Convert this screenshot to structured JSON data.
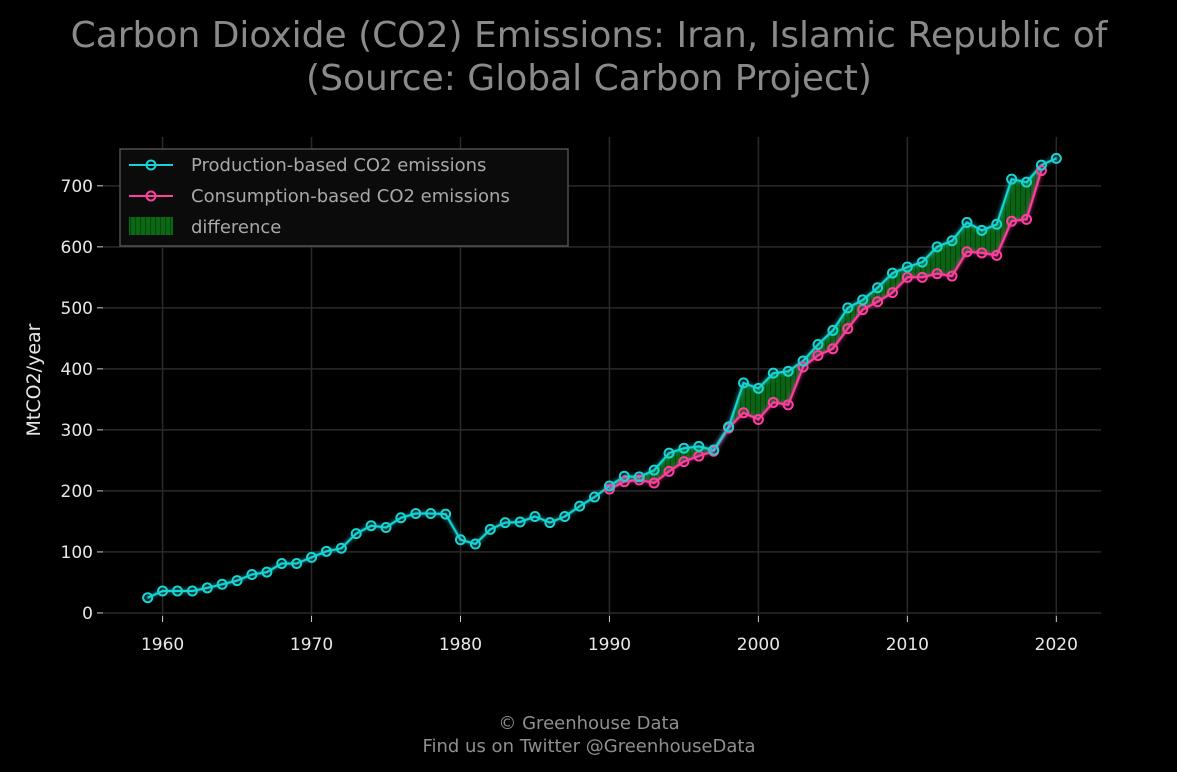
{
  "chart_data": {
    "type": "line",
    "title_line1": "Carbon Dioxide (CO2) Emissions: Iran, Islamic Republic of",
    "title_line2": "(Source: Global Carbon Project)",
    "xlabel": "",
    "ylabel": "MtCO2/year",
    "xlim": [
      1956,
      2023
    ],
    "ylim": [
      -5,
      780
    ],
    "xticks": [
      1960,
      1970,
      1980,
      1990,
      2000,
      2010,
      2020
    ],
    "yticks": [
      0,
      100,
      200,
      300,
      400,
      500,
      600,
      700
    ],
    "grid": true,
    "legend_position": "top-left",
    "legend": [
      "Production-based CO2 emissions",
      "Consumption-based CO2 emissions",
      "difference"
    ],
    "colors": {
      "production": "#19d4d4",
      "consumption": "#ff3fa0",
      "difference": "#0a6a14",
      "grid": "#2a2a2a",
      "background": "#000000"
    },
    "series": [
      {
        "name": "Production-based CO2 emissions",
        "x": [
          1959,
          1960,
          1961,
          1962,
          1963,
          1964,
          1965,
          1966,
          1967,
          1968,
          1969,
          1970,
          1971,
          1972,
          1973,
          1974,
          1975,
          1976,
          1977,
          1978,
          1979,
          1980,
          1981,
          1982,
          1983,
          1984,
          1985,
          1986,
          1987,
          1988,
          1989,
          1990,
          1991,
          1992,
          1993,
          1994,
          1995,
          1996,
          1997,
          1998,
          1999,
          2000,
          2001,
          2002,
          2003,
          2004,
          2005,
          2006,
          2007,
          2008,
          2009,
          2010,
          2011,
          2012,
          2013,
          2014,
          2015,
          2016,
          2017,
          2018,
          2019,
          2020
        ],
        "values": [
          25,
          36,
          36,
          36,
          41,
          47,
          53,
          63,
          67,
          81,
          81,
          91,
          101,
          106,
          130,
          143,
          140,
          156,
          163,
          163,
          162,
          120,
          113,
          137,
          148,
          149,
          158,
          148,
          158,
          175,
          190,
          208,
          224,
          223,
          234,
          262,
          270,
          273,
          267,
          305,
          377,
          368,
          393,
          396,
          413,
          440,
          463,
          500,
          513,
          533,
          557,
          567,
          575,
          600,
          610,
          640,
          627,
          637,
          711,
          706,
          734,
          745
        ]
      },
      {
        "name": "Consumption-based CO2 emissions",
        "x": [
          1990,
          1991,
          1992,
          1993,
          1994,
          1995,
          1996,
          1997,
          1998,
          1999,
          2000,
          2001,
          2002,
          2003,
          2004,
          2005,
          2006,
          2007,
          2008,
          2009,
          2010,
          2011,
          2012,
          2013,
          2014,
          2015,
          2016,
          2017,
          2018,
          2019
        ],
        "values": [
          203,
          215,
          218,
          213,
          232,
          248,
          257,
          265,
          303,
          328,
          317,
          345,
          341,
          403,
          422,
          433,
          466,
          497,
          510,
          525,
          550,
          550,
          556,
          552,
          592,
          590,
          586,
          642,
          645,
          725
        ]
      }
    ]
  },
  "footer": {
    "line1": "© Greenhouse Data",
    "line2": "Find us on Twitter @GreenhouseData"
  }
}
